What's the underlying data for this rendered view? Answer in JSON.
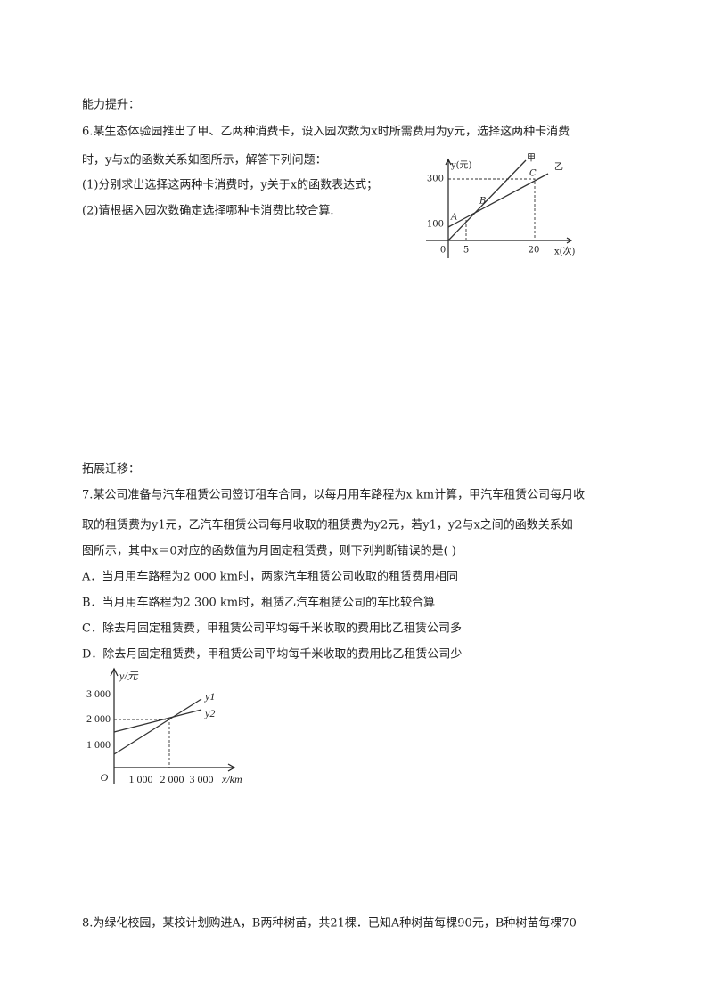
{
  "section1": {
    "heading": "能力提升：",
    "lines": [
      "6.某生态体验园推出了甲、乙两种消费卡，设入园次数为x时所需费用为y元，选择这两种卡消费",
      "时，y与x的函数关系如图所示，解答下列问题：",
      "(1)分别求出选择这两种卡消费时，y关于x的函数表达式；",
      "(2)请根据入园次数确定选择哪种卡消费比较合算."
    ],
    "figure": {
      "y_label": "y(元)",
      "x_label": "x(次)",
      "origin": "0",
      "yticks": [
        300,
        100
      ],
      "xticks": [
        5,
        20
      ],
      "line_labels": [
        "甲",
        "乙"
      ],
      "points": [
        "A",
        "B",
        "C"
      ]
    }
  },
  "section2": {
    "heading": "拓展迁移：",
    "lines": [
      "7.某公司准备与汽车租赁公司签订租车合同，以每月用车路程为x km计算，甲汽车租赁公司每月收",
      "取的租赁费为y1元，乙汽车租赁公司每月收取的租赁费为y2元，若y1，y2与x之间的函数关系如",
      "图所示，其中x＝0对应的函数值为月固定租赁费，则下列判断错误的是(      )"
    ],
    "options": [
      "A．当月用车路程为2 000 km时，两家汽车租赁公司收取的租赁费用相同",
      "B．当月用车路程为2 300 km时，租赁乙汽车租赁公司的车比较合算",
      "C．除去月固定租赁费，甲租赁公司平均每千米收取的费用比乙租赁公司多",
      "D．除去月固定租赁费，甲租赁公司平均每千米收取的费用比乙租赁公司少"
    ],
    "figure": {
      "y_label": "y/元",
      "x_label": "x/km",
      "origin": "O",
      "yticks": [
        "1 000",
        "2 000",
        "3 000"
      ],
      "xticks": [
        "1 000",
        "2 000",
        "3 000"
      ],
      "line_labels": [
        "y1",
        "y2"
      ]
    }
  },
  "section3": {
    "lines": [
      "8.为绿化校园，某校计划购进A，B两种树苗，共21棵．已知A种树苗每棵90元，B种树苗每棵70"
    ]
  }
}
